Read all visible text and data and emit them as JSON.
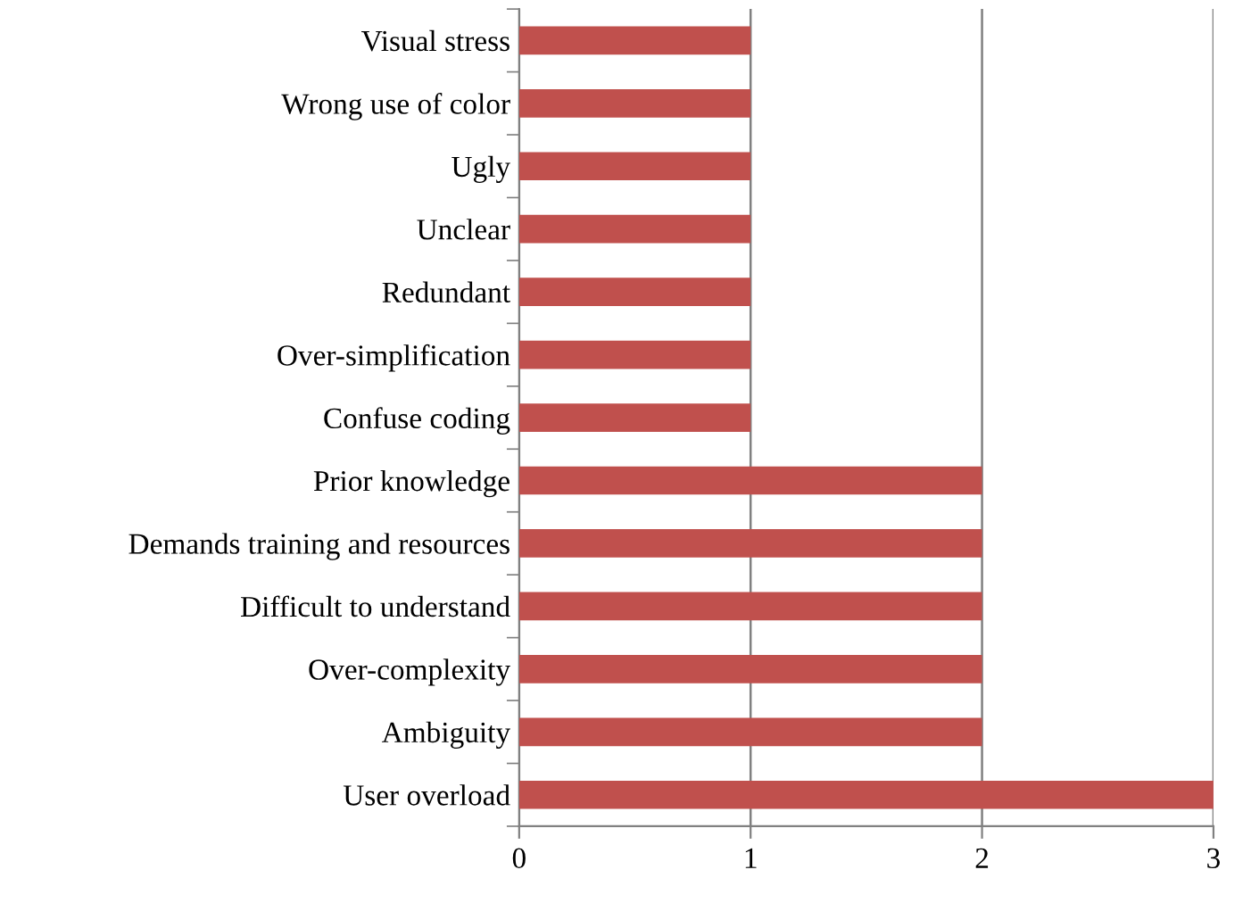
{
  "chart_data": {
    "type": "bar",
    "orientation": "horizontal",
    "categories": [
      "Visual stress",
      "Wrong use of color",
      "Ugly",
      "Unclear",
      "Redundant",
      "Over-simplification",
      "Confuse coding",
      "Prior knowledge",
      "Demands training and resources",
      "Difficult to understand",
      "Over-complexity",
      "Ambiguity",
      "User overload"
    ],
    "values": [
      1,
      1,
      1,
      1,
      1,
      1,
      1,
      2,
      2,
      2,
      2,
      2,
      3
    ],
    "color": "#c0504d",
    "xlim": [
      0,
      3
    ],
    "xticks": [
      0,
      1,
      2,
      3
    ],
    "grid": "x",
    "legend": false
  }
}
